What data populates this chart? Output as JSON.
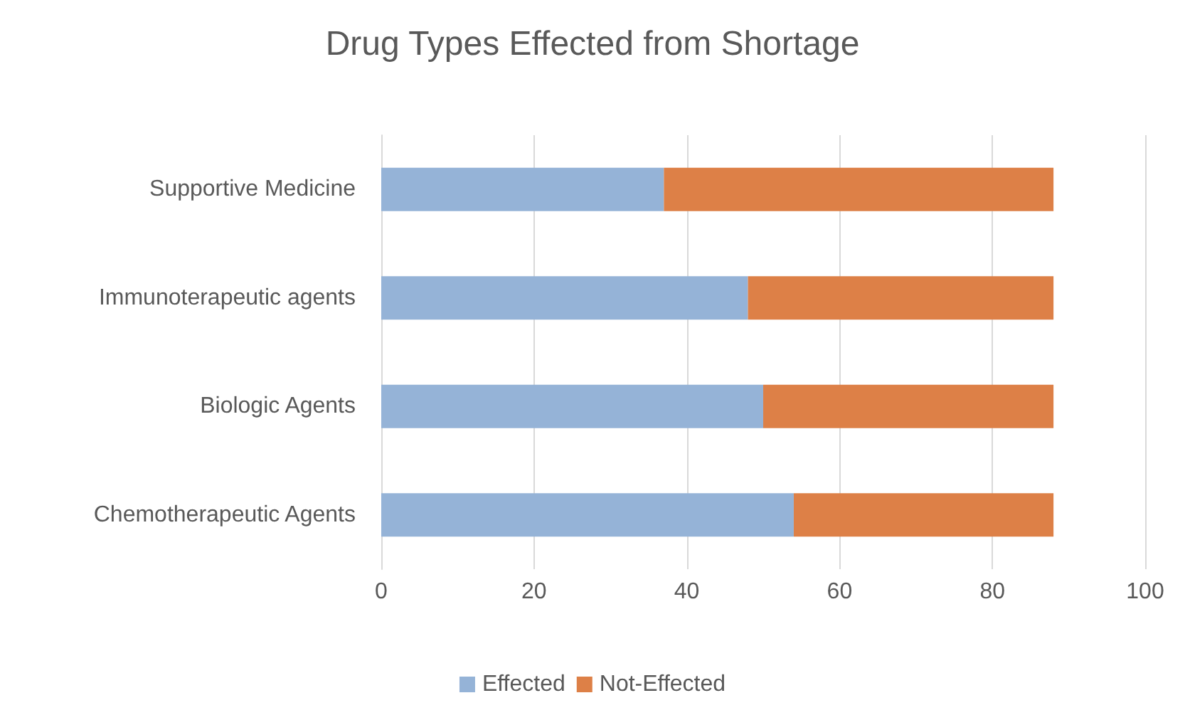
{
  "chart_data": {
    "type": "bar",
    "orientation": "horizontal",
    "stacked": true,
    "title": "Drug Types Effected from Shortage",
    "categories": [
      "Supportive Medicine",
      "Immunoterapeutic agents",
      "Biologic Agents",
      "Chemotherapeutic Agents"
    ],
    "series": [
      {
        "name": "Effected",
        "color": "#95b3d7",
        "values": [
          37,
          48,
          50,
          54
        ]
      },
      {
        "name": "Not-Effected",
        "color": "#dd8047",
        "values": [
          51,
          40,
          38,
          34
        ]
      }
    ],
    "xlim": [
      0,
      100
    ],
    "xticks": [
      0,
      20,
      40,
      60,
      80,
      100
    ],
    "grid": "x",
    "legend": "bottom"
  }
}
